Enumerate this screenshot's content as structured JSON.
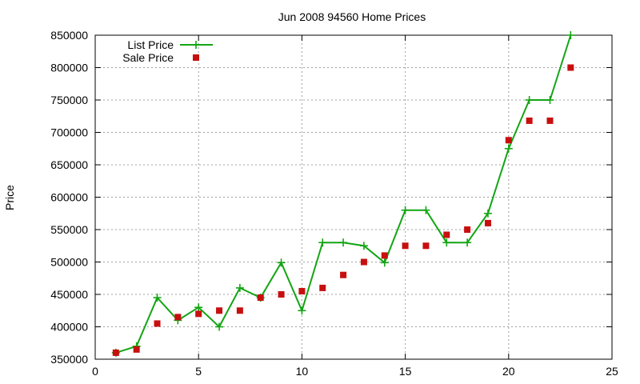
{
  "chart_data": {
    "type": "line",
    "title": "Jun 2008 94560 Home Prices",
    "xlabel": "",
    "ylabel": "Price",
    "xlim": [
      0,
      25
    ],
    "ylim": [
      350000,
      850000
    ],
    "xticks": [
      0,
      5,
      10,
      15,
      20,
      25
    ],
    "yticks": [
      350000,
      400000,
      450000,
      500000,
      550000,
      600000,
      650000,
      700000,
      750000,
      800000,
      850000
    ],
    "grid": true,
    "legend_position": "top-left",
    "series": [
      {
        "name": "List Price",
        "style": "linespoints",
        "marker": "plus",
        "color": "#13a513",
        "x": [
          1,
          2,
          3,
          4,
          5,
          6,
          7,
          8,
          9,
          10,
          11,
          12,
          13,
          14,
          15,
          16,
          17,
          18,
          19,
          20,
          21,
          22,
          23
        ],
        "values": [
          360000,
          370000,
          445000,
          410000,
          430000,
          400000,
          460000,
          445000,
          499000,
          425000,
          530000,
          530000,
          525000,
          499000,
          580000,
          580000,
          530000,
          530000,
          575000,
          675000,
          750000,
          750000,
          850000
        ]
      },
      {
        "name": "Sale Price",
        "style": "points",
        "marker": "square",
        "color": "#c80f0f",
        "x": [
          1,
          2,
          3,
          4,
          5,
          6,
          7,
          8,
          9,
          10,
          11,
          12,
          13,
          14,
          15,
          16,
          17,
          18,
          19,
          20,
          21,
          22,
          23
        ],
        "values": [
          360000,
          365000,
          405000,
          415000,
          420000,
          425000,
          425000,
          445000,
          450000,
          455000,
          460000,
          480000,
          500000,
          510000,
          525000,
          525000,
          542000,
          550000,
          560000,
          688000,
          718000,
          718000,
          800000
        ]
      }
    ]
  }
}
